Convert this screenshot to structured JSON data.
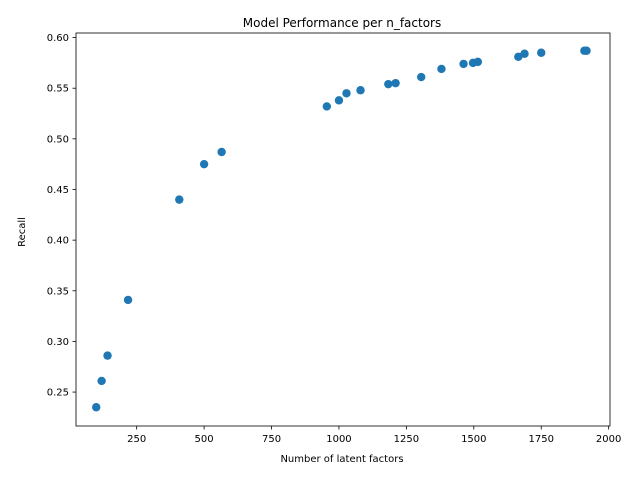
{
  "chart_data": {
    "type": "scatter",
    "title": "Model Performance per n_factors",
    "xlabel": "Number of latent factors",
    "ylabel": "Recall",
    "xlim": [
      25,
      2005
    ],
    "ylim": [
      0.2165,
      0.6045
    ],
    "xticks": [
      250,
      500,
      750,
      1000,
      1250,
      1500,
      1750,
      2000
    ],
    "xtick_labels": [
      "250",
      "500",
      "750",
      "1000",
      "1250",
      "1500",
      "1750",
      "2000"
    ],
    "yticks": [
      0.25,
      0.3,
      0.35,
      0.4,
      0.45,
      0.5,
      0.55,
      0.6
    ],
    "ytick_labels": [
      "0.25",
      "0.30",
      "0.35",
      "0.40",
      "0.45",
      "0.50",
      "0.55",
      "0.60"
    ],
    "grid": false,
    "marker_color": "#1f77b4",
    "points": [
      {
        "x": 100,
        "y": 0.235
      },
      {
        "x": 120,
        "y": 0.261
      },
      {
        "x": 142,
        "y": 0.286
      },
      {
        "x": 218,
        "y": 0.341
      },
      {
        "x": 408,
        "y": 0.44
      },
      {
        "x": 500,
        "y": 0.475
      },
      {
        "x": 565,
        "y": 0.487
      },
      {
        "x": 955,
        "y": 0.532
      },
      {
        "x": 1000,
        "y": 0.538
      },
      {
        "x": 1028,
        "y": 0.545
      },
      {
        "x": 1080,
        "y": 0.548
      },
      {
        "x": 1183,
        "y": 0.554
      },
      {
        "x": 1210,
        "y": 0.555
      },
      {
        "x": 1305,
        "y": 0.561
      },
      {
        "x": 1380,
        "y": 0.569
      },
      {
        "x": 1462,
        "y": 0.574
      },
      {
        "x": 1497,
        "y": 0.575
      },
      {
        "x": 1515,
        "y": 0.576
      },
      {
        "x": 1665,
        "y": 0.581
      },
      {
        "x": 1688,
        "y": 0.584
      },
      {
        "x": 1750,
        "y": 0.585
      },
      {
        "x": 1910,
        "y": 0.587
      },
      {
        "x": 1918,
        "y": 0.587
      }
    ]
  }
}
